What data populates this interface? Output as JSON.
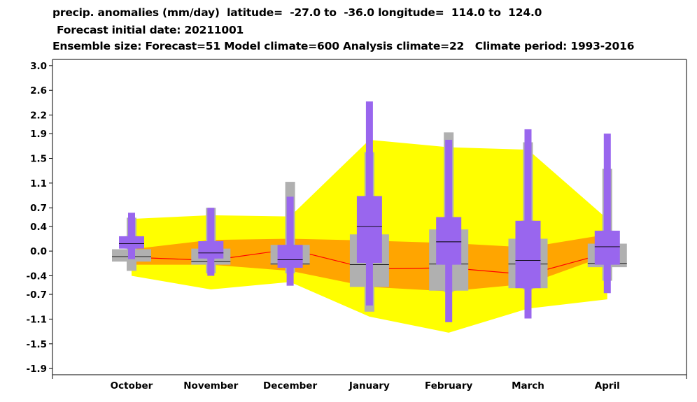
{
  "title_lines": [
    "precip. anomalies (mm/day)  latitude=  -27.0 to  -36.0 longitude=  114.0 to  124.0",
    "Forecast initial date: 20211001",
    "Ensemble size: Forecast=51 Model climate=600 Analysis climate=22   Climate period: 1993-2016"
  ],
  "colors": {
    "outer_band": "#ffff00",
    "inner_band": "#ffa500",
    "model_climate": "#b0b0b0",
    "forecast": "#9966ee",
    "median_line": "#ff0000"
  },
  "chart_data": {
    "type": "box",
    "categories": [
      "October",
      "November",
      "December",
      "January",
      "February",
      "March",
      "April"
    ],
    "y_ticks": [
      3.0,
      2.6,
      2.2,
      1.9,
      1.5,
      1.1,
      0.7,
      0.4,
      0.0,
      -0.4,
      -0.7,
      -1.1,
      -1.5,
      -1.9
    ],
    "y_tick_labels": [
      "3.0",
      "2.6",
      "2.2",
      "1.9",
      "1.5",
      "1.1",
      "0.7",
      "0.4",
      "0.0",
      "-0.4",
      "-0.7",
      "-1.1",
      "-1.5",
      "-1.9"
    ],
    "ylim": [
      -2.0,
      3.1
    ],
    "analysis_climate": {
      "outer_upper": [
        0.52,
        0.58,
        0.56,
        1.8,
        1.68,
        1.64,
        0.52
      ],
      "outer_lower": [
        -0.4,
        -0.62,
        -0.5,
        -1.06,
        -1.32,
        -0.93,
        -0.78
      ],
      "inner_upper": [
        0.03,
        0.18,
        0.2,
        0.17,
        0.13,
        0.06,
        0.27
      ],
      "inner_lower": [
        -0.22,
        -0.22,
        -0.32,
        -0.58,
        -0.65,
        -0.53,
        -0.07
      ],
      "median": [
        -0.1,
        -0.15,
        0.03,
        -0.29,
        -0.27,
        -0.38,
        -0.03
      ]
    },
    "model_climate": {
      "min": [
        -0.32,
        -0.36,
        -0.36,
        -0.98,
        -0.66,
        -0.62,
        -0.48
      ],
      "q1": [
        -0.17,
        -0.22,
        -0.22,
        -0.58,
        -0.64,
        -0.6,
        -0.26
      ],
      "median": [
        -0.09,
        -0.17,
        -0.21,
        -0.22,
        -0.21,
        -0.21,
        -0.2
      ],
      "q3": [
        0.03,
        0.04,
        0.1,
        0.27,
        0.35,
        0.2,
        0.12
      ],
      "max": [
        0.54,
        0.7,
        1.12,
        1.6,
        1.92,
        1.76,
        1.33
      ]
    },
    "forecast": {
      "min": [
        -0.13,
        -0.4,
        -0.56,
        -0.88,
        -1.15,
        -1.09,
        -0.68
      ],
      "q1": [
        0.04,
        -0.12,
        -0.27,
        -0.19,
        -0.22,
        -0.6,
        -0.22
      ],
      "median": [
        0.12,
        -0.03,
        -0.14,
        0.4,
        0.15,
        -0.15,
        0.07
      ],
      "q3": [
        0.24,
        0.16,
        0.1,
        0.89,
        0.55,
        0.49,
        0.33
      ],
      "max": [
        0.62,
        0.7,
        0.88,
        2.42,
        1.8,
        1.97,
        1.9
      ]
    }
  }
}
